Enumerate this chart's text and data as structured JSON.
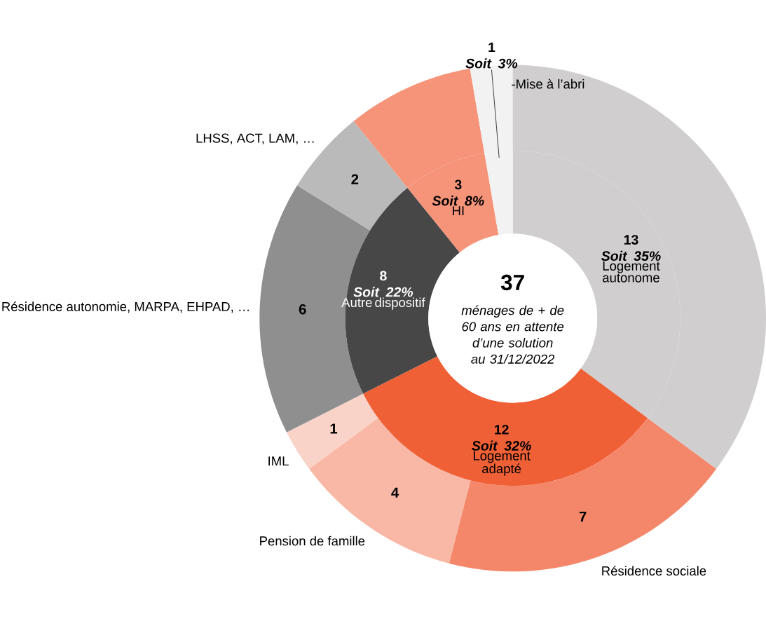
{
  "chart_data": [
    {
      "type": "donut",
      "categories": [
        "Résidence sociale",
        "Pension de famille",
        "IML",
        "Résidence autonomie, MARPA, EHPAD, …",
        "LHSS, ACT, LAM, …",
        null,
        null,
        null
      ],
      "values": [
        7,
        4,
        1,
        6,
        2,
        3,
        1,
        13
      ],
      "colors": [
        "#f4876a",
        "#f8b8a5",
        "#fad3c8",
        "#8f8f8f",
        "#bababa",
        "#f59479",
        "#f2f2f2",
        "#d0cecf"
      ],
      "value_labels": [
        "7",
        "4",
        "1",
        "6",
        "2",
        null,
        null,
        null
      ]
    },
    {
      "type": "donut",
      "categories": [
        "Logement autonome",
        "Logement adapté",
        "Autre dispositif",
        "HI",
        "-Mise à l’abri"
      ],
      "values": [
        13,
        12,
        8,
        3,
        1
      ],
      "colors": [
        "#d0cecf",
        "#f06036",
        "#474747",
        "#f59479",
        "#f2f2f2"
      ],
      "value_labels": [
        "13 *Soit 35%*",
        "12 *Soit 32%*",
        "8 *Soit 22%*",
        "3 *Soit 8%*",
        "1 *Soit 3%*"
      ],
      "annotations": [
        "37",
        "ménages de + de 60 ans en attente d’une solution au 31/12/2022"
      ]
    }
  ]
}
